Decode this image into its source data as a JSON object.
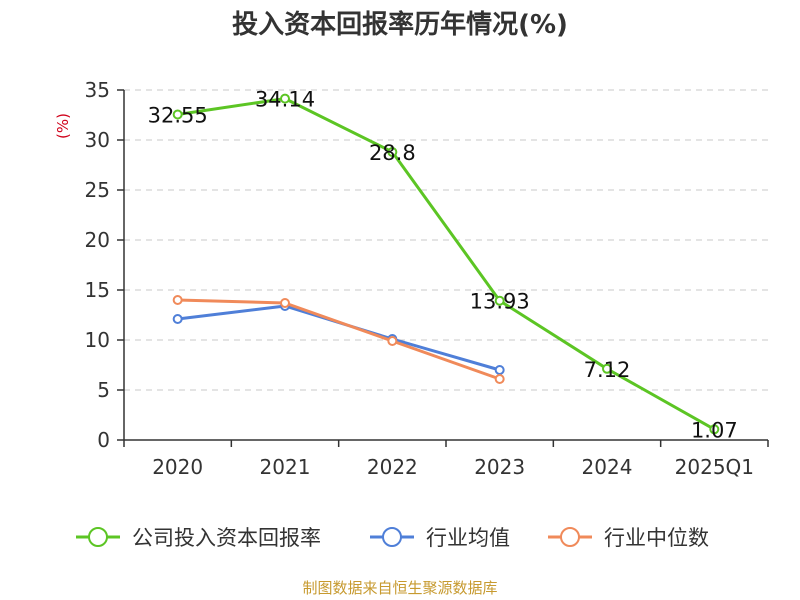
{
  "chart_data": {
    "type": "line",
    "title": "投入资本回报率历年情况(%)",
    "ylabel": "(%)",
    "xlabel": "",
    "categories": [
      "2020",
      "2021",
      "2022",
      "2023",
      "2024",
      "2025Q1"
    ],
    "ylim": [
      0,
      35
    ],
    "yticks": [
      0,
      5,
      10,
      15,
      20,
      25,
      30,
      35
    ],
    "grid": true,
    "legend_position": "bottom",
    "series": [
      {
        "name": "公司投入资本回报率",
        "color": "#5cc524",
        "values": [
          32.55,
          34.14,
          28.8,
          13.93,
          7.12,
          1.07
        ],
        "labels": [
          "32.55",
          "34.14",
          "28.8",
          "13.93",
          "7.12",
          "1.07"
        ]
      },
      {
        "name": "行业均值",
        "color": "#4f7fd8",
        "values": [
          12.1,
          13.4,
          10.1,
          7.0,
          null,
          null
        ]
      },
      {
        "name": "行业中位数",
        "color": "#f08a5a",
        "values": [
          14.0,
          13.7,
          9.9,
          6.1,
          null,
          null
        ]
      }
    ]
  },
  "source": "制图数据来自恒生聚源数据库"
}
